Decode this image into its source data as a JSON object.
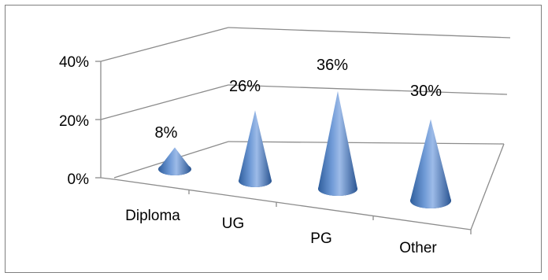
{
  "chart_data": {
    "type": "bar",
    "style": "3d-cone",
    "categories": [
      "Diploma",
      "UG",
      "PG",
      "Other"
    ],
    "values": [
      8,
      26,
      36,
      30
    ],
    "data_labels": [
      "8%",
      "26%",
      "36%",
      "30%"
    ],
    "y_ticks": [
      "0%",
      "20%",
      "40%"
    ],
    "ylim": [
      0,
      40
    ],
    "grid": true,
    "legend": "none",
    "series_color": "#4F81BD"
  }
}
